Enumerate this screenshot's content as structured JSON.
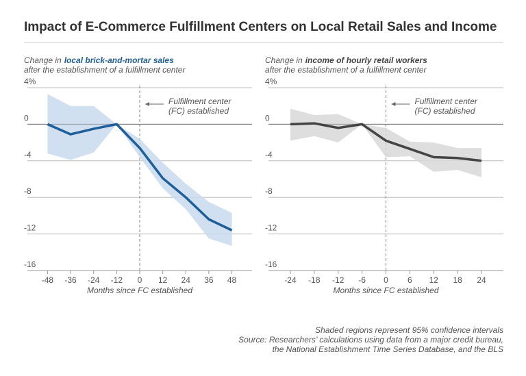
{
  "title": "Impact of E-Commerce Fulfillment Centers on Local Retail Sales and Income",
  "notes": [
    "Shaded regions represent 95% confidence intervals",
    "Source: Researchers’ calculations using data from a major credit bureau,",
    "the National Establishment Time Series Database, and the BLS"
  ],
  "chart_data": [
    {
      "type": "line",
      "subtitle": {
        "lead": "Change in",
        "emphasis": "local brick-and-mortar sales",
        "line2": "after the establishment of a fulfillment center"
      },
      "x_label": "Months since FC established",
      "annotation": {
        "x": 0,
        "text": [
          "Fulfillment center",
          "(FC) established"
        ]
      },
      "xlim": [
        -58.5,
        58.5
      ],
      "xticks": [
        -48,
        -36,
        -24,
        -12,
        0,
        12,
        24,
        36,
        48
      ],
      "ylim": [
        -16,
        4
      ],
      "yticks": [
        {
          "value": 4,
          "label": "4%"
        },
        0,
        -4,
        -8,
        -12,
        -16
      ],
      "grid": true,
      "series": [
        {
          "color": "#1f5f99",
          "band_color": "#c8dbee",
          "x": [
            -48,
            -36,
            -24,
            -12,
            0,
            12,
            24,
            36,
            48
          ],
          "values": [
            0,
            -1.1,
            -0.5,
            0,
            -2.6,
            -5.9,
            -8.0,
            -10.4,
            -11.6
          ],
          "ci_upper": [
            3.3,
            2.0,
            2.0,
            0,
            -1.6,
            -4.2,
            -6.5,
            -8.5,
            -9.7
          ],
          "ci_lower": [
            -3.2,
            -3.9,
            -3.1,
            0,
            -3.6,
            -7.0,
            -9.3,
            -12.5,
            -13.3
          ]
        }
      ]
    },
    {
      "type": "line",
      "subtitle": {
        "lead": "Change in",
        "emphasis": "income of hourly retail workers",
        "line2": "after the establishment of a fulfillment center"
      },
      "x_label": "Months since FC established",
      "annotation": {
        "x": 0,
        "text": [
          "Fulfillment center",
          "(FC) established"
        ]
      },
      "xlim": [
        -29.5,
        29.5
      ],
      "xticks": [
        -24,
        -18,
        -12,
        -6,
        0,
        6,
        12,
        18,
        24
      ],
      "ylim": [
        -16,
        4
      ],
      "yticks": [
        {
          "value": 4,
          "label": "4%"
        },
        0,
        -4,
        -8,
        -12,
        -16
      ],
      "grid": true,
      "series": [
        {
          "color": "#444444",
          "band_color": "#d8d8d8",
          "x": [
            -24,
            -18,
            -12,
            -6,
            0,
            6,
            12,
            18,
            24
          ],
          "values": [
            0,
            0.1,
            -0.4,
            0,
            -1.8,
            -2.7,
            -3.6,
            -3.7,
            -4.0
          ],
          "ci_upper": [
            1.7,
            1.0,
            1.1,
            0,
            -0.4,
            -1.9,
            -2.0,
            -2.6,
            -2.6
          ],
          "ci_lower": [
            -1.8,
            -1.3,
            -2.0,
            0,
            -3.6,
            -3.5,
            -5.2,
            -5.0,
            -5.8
          ]
        }
      ]
    }
  ]
}
